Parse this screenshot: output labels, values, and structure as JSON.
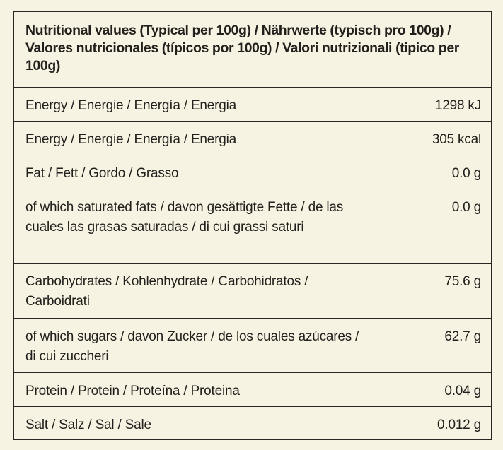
{
  "table": {
    "header": "Nutritional values (Typical per 100g) / Nährwerte (typisch pro 100g) / Valores nutricionales (típicos por 100g) / Valori nutrizionali (tipico per 100g)",
    "rows": [
      {
        "label": "Energy / Energie / Energía / Energia",
        "value": "1298 kJ"
      },
      {
        "label": "Energy / Energie / Energía / Energia",
        "value": "305 kcal"
      },
      {
        "label": "Fat / Fett / Gordo / Grasso",
        "value": "0.0 g"
      },
      {
        "label": "of which saturated fats / davon gesättigte Fette / de las cuales las grasas saturadas / di cui grassi saturi",
        "value": "0.0 g"
      },
      {
        "label": "Carbohydrates / Kohlenhydrate / Carbohidratos / Carboidrati",
        "value": "75.6 g"
      },
      {
        "label": "of which sugars / davon Zucker / de los cuales azúcares / di cui zuccheri",
        "value": "62.7 g"
      },
      {
        "label": "Protein / Protein / Proteína / Proteina",
        "value": "0.04 g"
      },
      {
        "label": "Salt / Salz / Sal / Sale",
        "value": "0.012 g"
      }
    ]
  }
}
